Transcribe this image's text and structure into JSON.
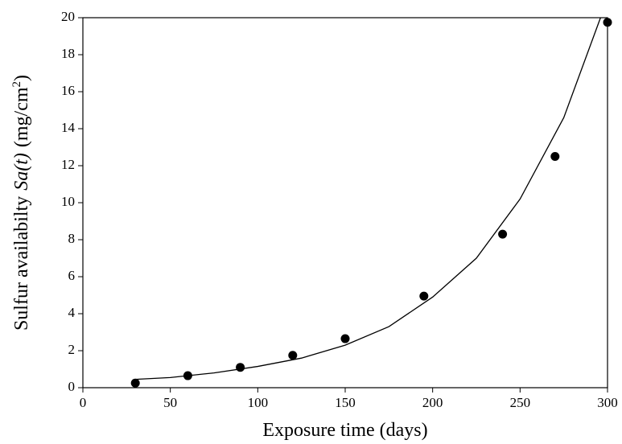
{
  "chart_data": {
    "type": "scatter",
    "xlabel": "Exposure time (days)",
    "ylabel": [
      "Sulfur availabilty",
      "Sa(t)",
      "(mg/cm",
      "2",
      ")"
    ],
    "xlim": [
      0,
      300
    ],
    "xticks": [
      0,
      50,
      100,
      150,
      200,
      250,
      300
    ],
    "ylim": [
      0,
      20
    ],
    "yticks": [
      0,
      2,
      4,
      6,
      8,
      10,
      12,
      14,
      16,
      18,
      20
    ],
    "series": [
      {
        "type": "scatter",
        "color": "#000000",
        "x": [
          30,
          60,
          90,
          120,
          150,
          195,
          240,
          270,
          300
        ],
        "values": [
          0.25,
          0.65,
          1.1,
          1.75,
          2.65,
          4.95,
          8.3,
          12.5,
          19.75
        ]
      },
      {
        "type": "line",
        "color": "#000000",
        "x": [
          30,
          50,
          75,
          100,
          125,
          150,
          175,
          200,
          225,
          250,
          275,
          296
        ],
        "values": [
          0.45,
          0.55,
          0.8,
          1.15,
          1.6,
          2.3,
          3.3,
          4.9,
          7.0,
          10.2,
          14.6,
          20
        ]
      }
    ]
  }
}
